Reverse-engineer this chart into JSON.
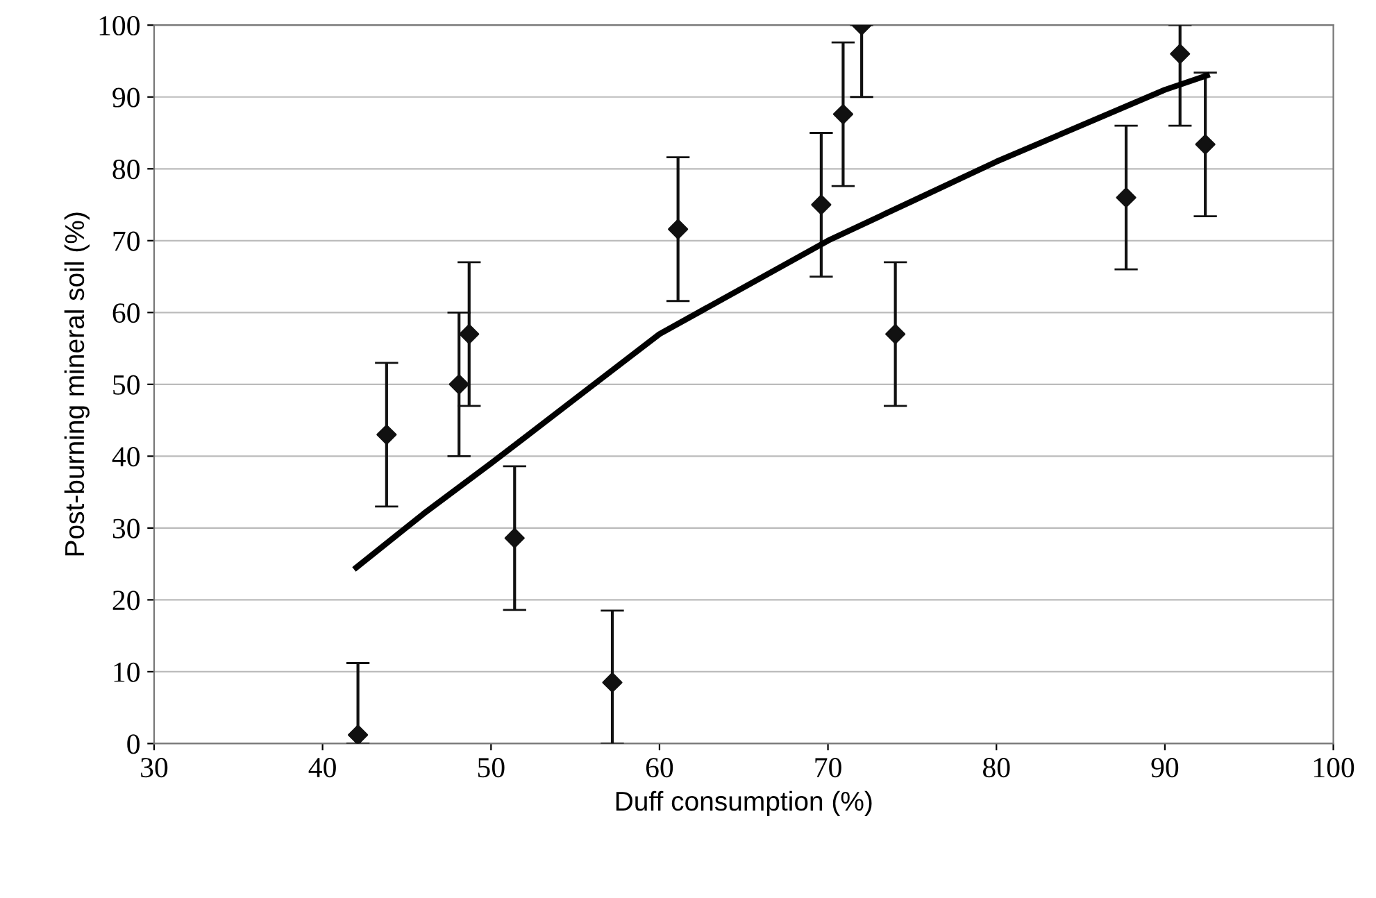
{
  "chart_data": {
    "type": "scatter",
    "xlabel": "Duff consumption (%)",
    "ylabel": "Post-burning mineral soil (%)",
    "xlim": [
      30,
      100
    ],
    "ylim": [
      0,
      100
    ],
    "xticks": [
      30,
      40,
      50,
      60,
      70,
      80,
      90,
      100
    ],
    "yticks": [
      0,
      10,
      20,
      30,
      40,
      50,
      60,
      70,
      80,
      90,
      100
    ],
    "grid": "y",
    "marker": "diamond",
    "series": [
      {
        "color": "#111111",
        "x": [
          42.1,
          43.8,
          48.1,
          48.7,
          51.4,
          57.2,
          61.1,
          69.6,
          70.9,
          72.0,
          74.0,
          87.7,
          90.9,
          92.4
        ],
        "values": [
          1.2,
          43,
          50,
          57,
          28.6,
          8.5,
          71.6,
          75,
          87.6,
          100,
          57,
          76,
          96,
          83.4
        ],
        "errors": [
          [
            0,
            11.2
          ],
          10,
          10,
          10,
          10,
          [
            0,
            18.5
          ],
          10,
          10,
          10,
          [
            90,
            100
          ],
          10,
          10,
          [
            86,
            100
          ],
          10
        ]
      },
      {
        "type": "line",
        "color": "#000000",
        "marker": "none",
        "x": [
          42,
          46,
          50,
          55,
          60,
          65,
          70,
          75,
          80,
          85,
          90,
          92.5
        ],
        "values": [
          24.5,
          32,
          39,
          48,
          57,
          63.5,
          70,
          75.5,
          81,
          86,
          91,
          93
        ]
      }
    ]
  }
}
